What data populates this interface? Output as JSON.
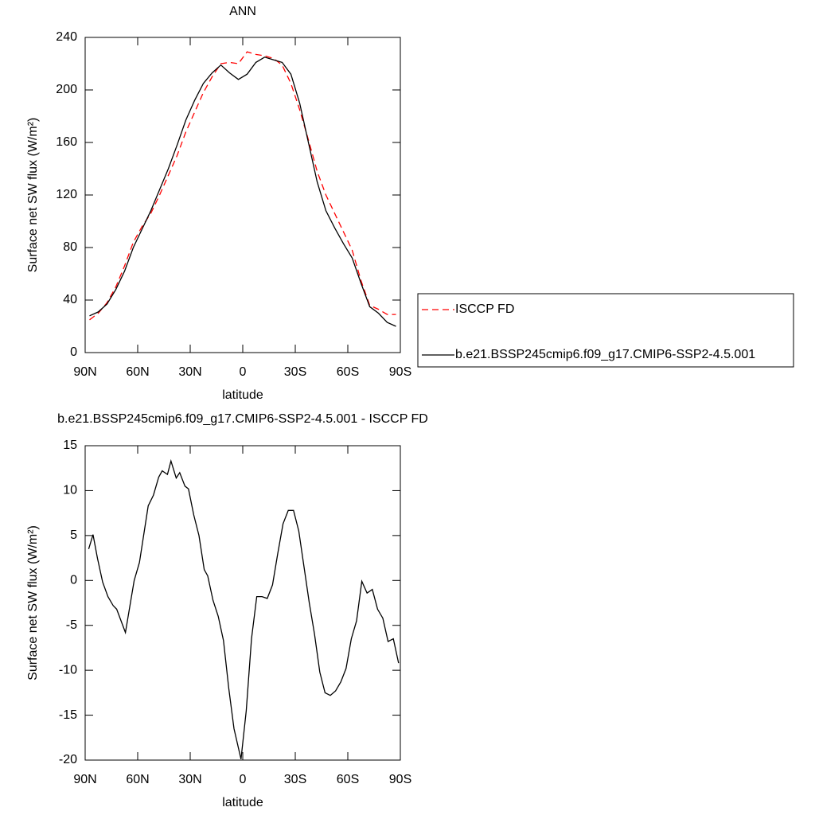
{
  "chart_data": [
    {
      "type": "line",
      "title": "ANN",
      "xlabel": "latitude",
      "ylabel": "Surface net SW flux (W/m²)",
      "x": [
        87.5,
        82.5,
        77.5,
        72.5,
        67.5,
        62.5,
        57.5,
        52.5,
        47.5,
        42.5,
        37.5,
        32.5,
        27.5,
        22.5,
        17.5,
        12.5,
        7.5,
        2.5,
        -2.5,
        -7.5,
        -12.5,
        -17.5,
        -22.5,
        -27.5,
        -32.5,
        -37.5,
        -42.5,
        -47.5,
        -52.5,
        -57.5,
        -62.5,
        -67.5,
        -72.5,
        -77.5,
        -82.5,
        -87.5
      ],
      "series": [
        {
          "name": "ISCCP FD",
          "color": "#ff0000",
          "dash": true,
          "values": [
            25,
            30,
            38,
            50,
            66,
            84,
            96,
            106,
            120,
            135,
            150,
            168,
            183,
            198,
            210,
            220,
            221,
            220,
            229,
            227,
            226,
            224,
            219,
            205,
            185,
            162,
            138,
            120,
            106,
            92,
            78,
            55,
            36,
            33,
            29,
            29
          ]
        },
        {
          "name": "b.e21.BSSP245cmip6.f09_g17.CMIP6-SSP2-4.5.001",
          "color": "#000000",
          "dash": false,
          "values": [
            28,
            31,
            37,
            48,
            62,
            80,
            94,
            108,
            124,
            140,
            158,
            177,
            192,
            205,
            213,
            219,
            213,
            208,
            212,
            221,
            225,
            223,
            221,
            212,
            190,
            160,
            130,
            108,
            95,
            83,
            72,
            53,
            35,
            30,
            23,
            20
          ]
        }
      ],
      "xlim": [
        90,
        -90
      ],
      "xticks": [
        {
          "value": 90,
          "label": "90N"
        },
        {
          "value": 60,
          "label": "60N"
        },
        {
          "value": 30,
          "label": "30N"
        },
        0,
        {
          "value": -30,
          "label": "30S"
        },
        {
          "value": -60,
          "label": "60S"
        },
        {
          "value": -90,
          "label": "90S"
        }
      ],
      "ylim": [
        0,
        240
      ],
      "yticks": [
        0,
        40,
        80,
        120,
        160,
        200,
        240
      ]
    },
    {
      "type": "line",
      "title": "b.e21.BSSP245cmip6.f09_g17.CMIP6-SSP2-4.5.001 - ISCCP FD",
      "xlabel": "latitude",
      "ylabel": "Surface net SW flux (W/m²)",
      "x": [
        88,
        85.5,
        83,
        80,
        77,
        74,
        72,
        67,
        62,
        59,
        54,
        51,
        48,
        46,
        43,
        41,
        38,
        36,
        33,
        31,
        28,
        25,
        22,
        20,
        17,
        14,
        11,
        8,
        5,
        1,
        -2,
        -5,
        -8,
        -11,
        -14,
        -17,
        -20,
        -23,
        -26,
        -29,
        -32,
        -35,
        -38,
        -41,
        -44,
        -47,
        -50,
        -53,
        -56,
        -59,
        -62,
        -65,
        -68,
        -71,
        -74,
        -77,
        -80,
        -83,
        -86,
        -89
      ],
      "series": [
        {
          "color": "#000000",
          "dash": false,
          "values": [
            3.5,
            5.1,
            2.5,
            -0.2,
            -1.8,
            -2.8,
            -3.2,
            -5.8,
            0,
            2,
            8.3,
            9.5,
            11.5,
            12.2,
            11.8,
            13.3,
            11.4,
            12.0,
            10.5,
            10.2,
            7.3,
            5,
            1.2,
            0.5,
            -2.2,
            -4,
            -6.7,
            -12,
            -16.5,
            -19.9,
            -14.5,
            -6.5,
            -1.8,
            -1.8,
            -2,
            -0.5,
            3,
            6.3,
            7.8,
            7.8,
            5.5,
            1.5,
            -2.5,
            -6,
            -10.2,
            -12.5,
            -12.8,
            -12.3,
            -11.3,
            -9.8,
            -6.5,
            -4.5,
            -0.1,
            -1.4,
            -1,
            -3.2,
            -4.2,
            -6.8,
            -6.5,
            -9.2
          ]
        }
      ],
      "xlim": [
        90,
        -90
      ],
      "xticks": [
        {
          "value": 90,
          "label": "90N"
        },
        {
          "value": 60,
          "label": "60N"
        },
        {
          "value": 30,
          "label": "30N"
        },
        0,
        {
          "value": -30,
          "label": "30S"
        },
        {
          "value": -60,
          "label": "60S"
        },
        {
          "value": -90,
          "label": "90S"
        }
      ],
      "ylim": [
        -20,
        15
      ],
      "yticks": [
        -20,
        -15,
        -10,
        -5,
        0,
        5,
        10,
        15
      ]
    }
  ]
}
